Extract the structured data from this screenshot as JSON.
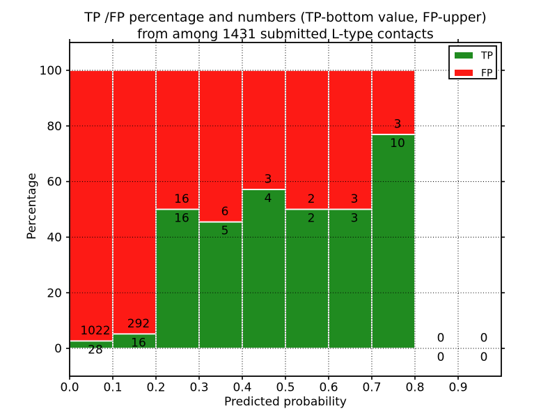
{
  "chart_data": {
    "type": "bar",
    "stacked": true,
    "title_line1": "TP /FP percentage and numbers (TP-bottom value, FP-upper)",
    "title_line2": "from among 1431 submitted L-type contacts",
    "xlabel": "Predicted probability",
    "ylabel": "Percentage",
    "xlim": [
      0.0,
      1.0
    ],
    "ylim": [
      -10,
      110
    ],
    "xticks": [
      0.0,
      0.1,
      0.2,
      0.3,
      0.4,
      0.5,
      0.6,
      0.7,
      0.8,
      0.9
    ],
    "xtick_labels": [
      "0.0",
      "0.1",
      "0.2",
      "0.3",
      "0.4",
      "0.5",
      "0.6",
      "0.7",
      "0.8",
      "0.9"
    ],
    "yticks": [
      0,
      20,
      40,
      60,
      80,
      100
    ],
    "ytick_labels": [
      "0",
      "20",
      "40",
      "60",
      "80",
      "100"
    ],
    "grid": true,
    "legend_position": "upper right",
    "legend": [
      {
        "label": "TP",
        "color": "#208b20"
      },
      {
        "label": "FP",
        "color": "#fd1a15"
      }
    ],
    "colors": {
      "tp": "#208b20",
      "fp": "#fd1a15",
      "bar_edge": "#ffffff",
      "axis": "#000000"
    },
    "bins": [
      {
        "range": [
          0.0,
          0.1
        ],
        "tp": 28,
        "fp": 1022
      },
      {
        "range": [
          0.1,
          0.2
        ],
        "tp": 16,
        "fp": 292
      },
      {
        "range": [
          0.2,
          0.3
        ],
        "tp": 16,
        "fp": 16
      },
      {
        "range": [
          0.3,
          0.4
        ],
        "tp": 5,
        "fp": 6
      },
      {
        "range": [
          0.4,
          0.5
        ],
        "tp": 4,
        "fp": 3
      },
      {
        "range": [
          0.5,
          0.6
        ],
        "tp": 2,
        "fp": 2
      },
      {
        "range": [
          0.6,
          0.7
        ],
        "tp": 3,
        "fp": 3
      },
      {
        "range": [
          0.7,
          0.8
        ],
        "tp": 10,
        "fp": 3
      },
      {
        "range": [
          0.8,
          0.9
        ],
        "tp": 0,
        "fp": 0
      },
      {
        "range": [
          0.9,
          1.0
        ],
        "tp": 0,
        "fp": 0
      }
    ]
  }
}
